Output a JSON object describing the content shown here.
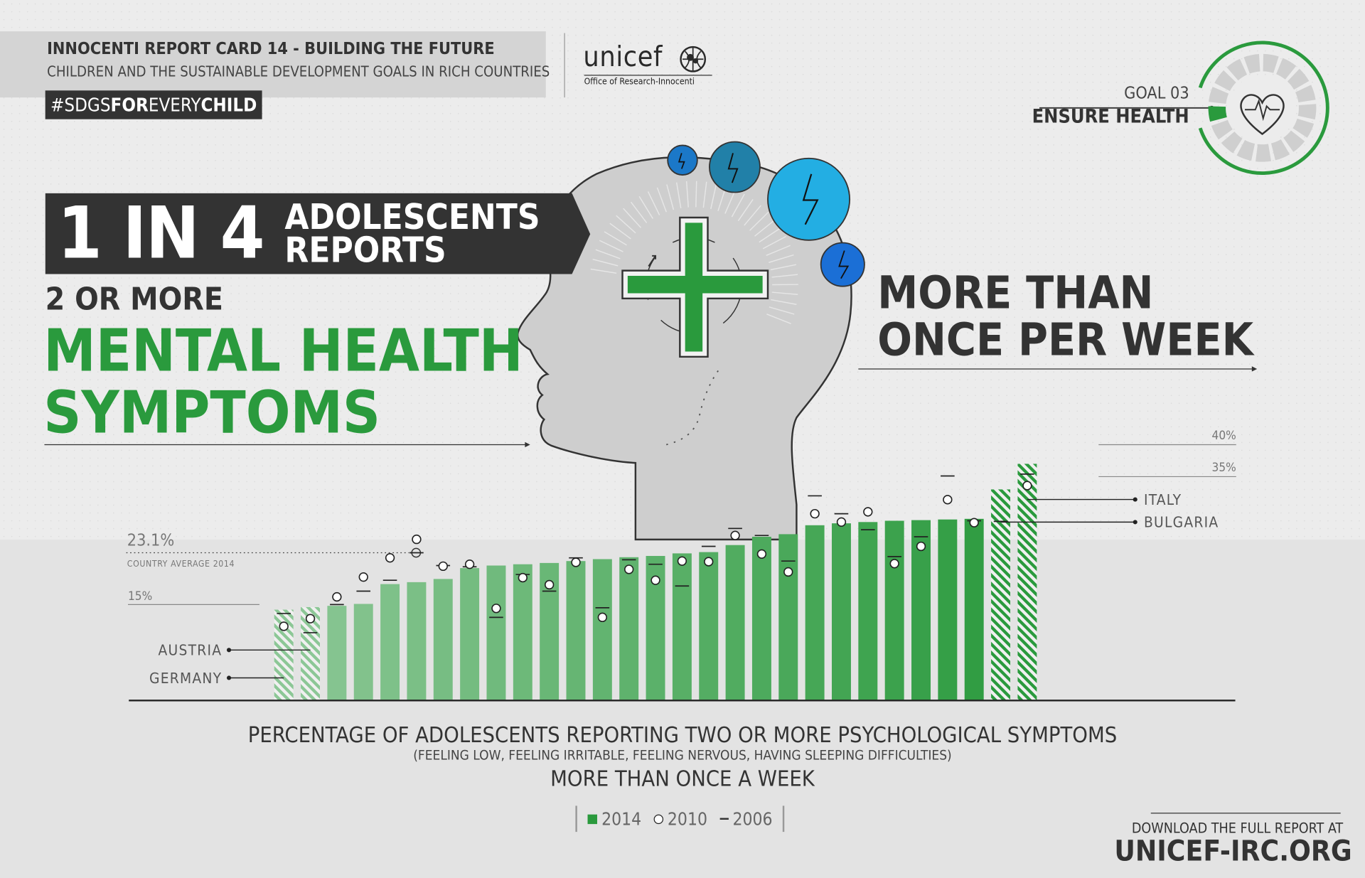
{
  "header": {
    "report_title": "INNOCENTI REPORT CARD 14 - BUILDING THE FUTURE",
    "report_subtitle": "CHILDREN AND THE SUSTAINABLE DEVELOPMENT GOALS IN RICH COUNTRIES",
    "hashtag_parts": [
      "#SDGS",
      "FOR",
      "EVERY",
      "CHILD"
    ],
    "logo_word": "unicef",
    "logo_sub": "Office of Research-Innocenti"
  },
  "goal": {
    "label": "GOAL 03",
    "title": "ENSURE HEALTH",
    "accent_color": "#2a9a3d"
  },
  "headline": {
    "number": "1 IN 4",
    "line1": "ADOLESCENTS",
    "line2": "REPORTS",
    "qualifier": "2 OR MORE",
    "topic_line1": "MENTAL HEALTH",
    "topic_line2": "SYMPTOMS"
  },
  "frequency": {
    "line1": "MORE THAN",
    "line2": "ONCE PER WEEK"
  },
  "chart_data": {
    "type": "bar",
    "title": "PERCENTAGE OF ADOLESCENTS REPORTING TWO OR MORE PSYCHOLOGICAL SYMPTOMS",
    "subtitle": "(FEELING LOW, FEELING IRRITABLE, FEELING NERVOUS, HAVING SLEEPING DIFFICULTIES)",
    "frequency_label": "MORE THAN ONCE A WEEK",
    "series": [
      {
        "name": "2014",
        "marker": "bar",
        "color": "#2a9a3d",
        "values": [
          14.2,
          14.6,
          14.8,
          15.1,
          18.2,
          18.5,
          19.0,
          20.7,
          21.1,
          21.3,
          21.5,
          21.8,
          22.1,
          22.4,
          22.6,
          23.0,
          23.2,
          24.3,
          25.6,
          26.0,
          27.4,
          27.7,
          27.9,
          28.1,
          28.2,
          28.3,
          28.4,
          33.0,
          37.0
        ]
      },
      {
        "name": "2010",
        "marker": "circle",
        "values": [
          11.6,
          12.8,
          16.2,
          19.3,
          22.3,
          25.2,
          21.0,
          21.3,
          14.4,
          19.2,
          18.1,
          21.6,
          13.0,
          20.5,
          18.8,
          21.8,
          21.7,
          25.8,
          22.9,
          20.1,
          29.2,
          27.9,
          29.5,
          21.4,
          24.1,
          31.4,
          27.8,
          null,
          33.6
        ]
      },
      {
        "name": "2006",
        "marker": "dash",
        "values": [
          13.6,
          10.6,
          15.0,
          17.1,
          18.8,
          23.1,
          21.1,
          20.9,
          13.0,
          19.7,
          17.1,
          22.3,
          14.5,
          22.0,
          21.3,
          17.9,
          24.1,
          26.9,
          25.8,
          21.8,
          32.0,
          29.2,
          26.7,
          22.5,
          25.6,
          35.1,
          28.1,
          28.0,
          35.4
        ]
      }
    ],
    "ylim": [
      0,
      40
    ],
    "reference_lines": [
      {
        "value": 15,
        "label": "15%"
      },
      {
        "value": 35,
        "label": "35%"
      },
      {
        "value": 40,
        "label": "40%"
      }
    ],
    "country_average": {
      "value": 23.1,
      "label": "23.1%",
      "caption": "COUNTRY AVERAGE 2014"
    },
    "highlighted": [
      {
        "index": 0,
        "label": "GERMANY",
        "hatched": true
      },
      {
        "index": 1,
        "label": "AUSTRIA",
        "hatched": true
      },
      {
        "index": 27,
        "label": "BULGARIA",
        "hatched": true
      },
      {
        "index": 28,
        "label": "ITALY",
        "hatched": true
      }
    ]
  },
  "legend": [
    {
      "label": "2014",
      "marker": "bar"
    },
    {
      "label": "2010",
      "marker": "circle"
    },
    {
      "label": "2006",
      "marker": "dash"
    }
  ],
  "footer": {
    "download_label": "DOWNLOAD THE FULL REPORT AT",
    "download_url": "UNICEF-IRC.ORG"
  }
}
